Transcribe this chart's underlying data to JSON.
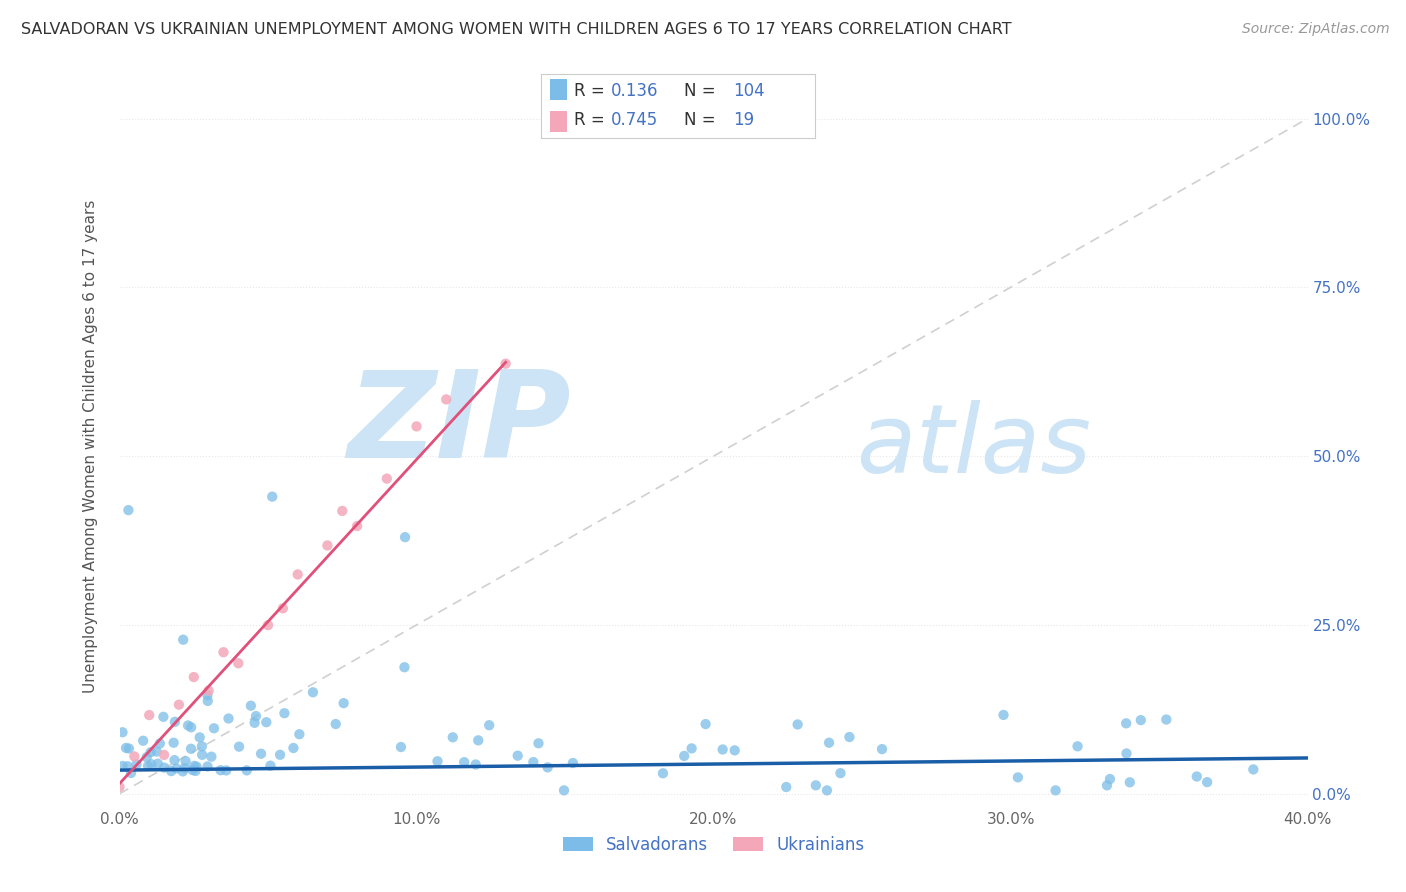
{
  "title": "SALVADORAN VS UKRAINIAN UNEMPLOYMENT AMONG WOMEN WITH CHILDREN AGES 6 TO 17 YEARS CORRELATION CHART",
  "source": "Source: ZipAtlas.com",
  "ylabel": "Unemployment Among Women with Children Ages 6 to 17 years",
  "xlim": [
    0.0,
    0.4
  ],
  "ylim": [
    -0.02,
    1.05
  ],
  "xtick_labels": [
    "0.0%",
    "10.0%",
    "20.0%",
    "30.0%",
    "40.0%"
  ],
  "xtick_values": [
    0.0,
    0.1,
    0.2,
    0.3,
    0.4
  ],
  "ytick_labels_right": [
    "0.0%",
    "25.0%",
    "50.0%",
    "75.0%",
    "100.0%"
  ],
  "ytick_values_right": [
    0.0,
    0.25,
    0.5,
    0.75,
    1.0
  ],
  "salvadoran_color": "#7bbde8",
  "ukrainian_color": "#f4a7b9",
  "salvadoran_trend_color": "#1a5ea8",
  "ukrainian_trend_color": "#e0507a",
  "diagonal_color": "#c8c8c8",
  "R_salvadoran": 0.136,
  "N_salvadoran": 104,
  "R_ukrainian": 0.745,
  "N_ukrainian": 19,
  "legend_salvadorans": "Salvadorans",
  "legend_ukrainians": "Ukrainians",
  "watermark_zip": "ZIP",
  "watermark_atlas": "atlas",
  "watermark_color": "#cce4f5",
  "background_color": "#ffffff",
  "grid_color": "#e8e8e8",
  "title_color": "#333333",
  "source_color": "#999999",
  "right_tick_color": "#4472c4",
  "legend_text_color": "#333333",
  "legend_num_color": "#4472c4"
}
